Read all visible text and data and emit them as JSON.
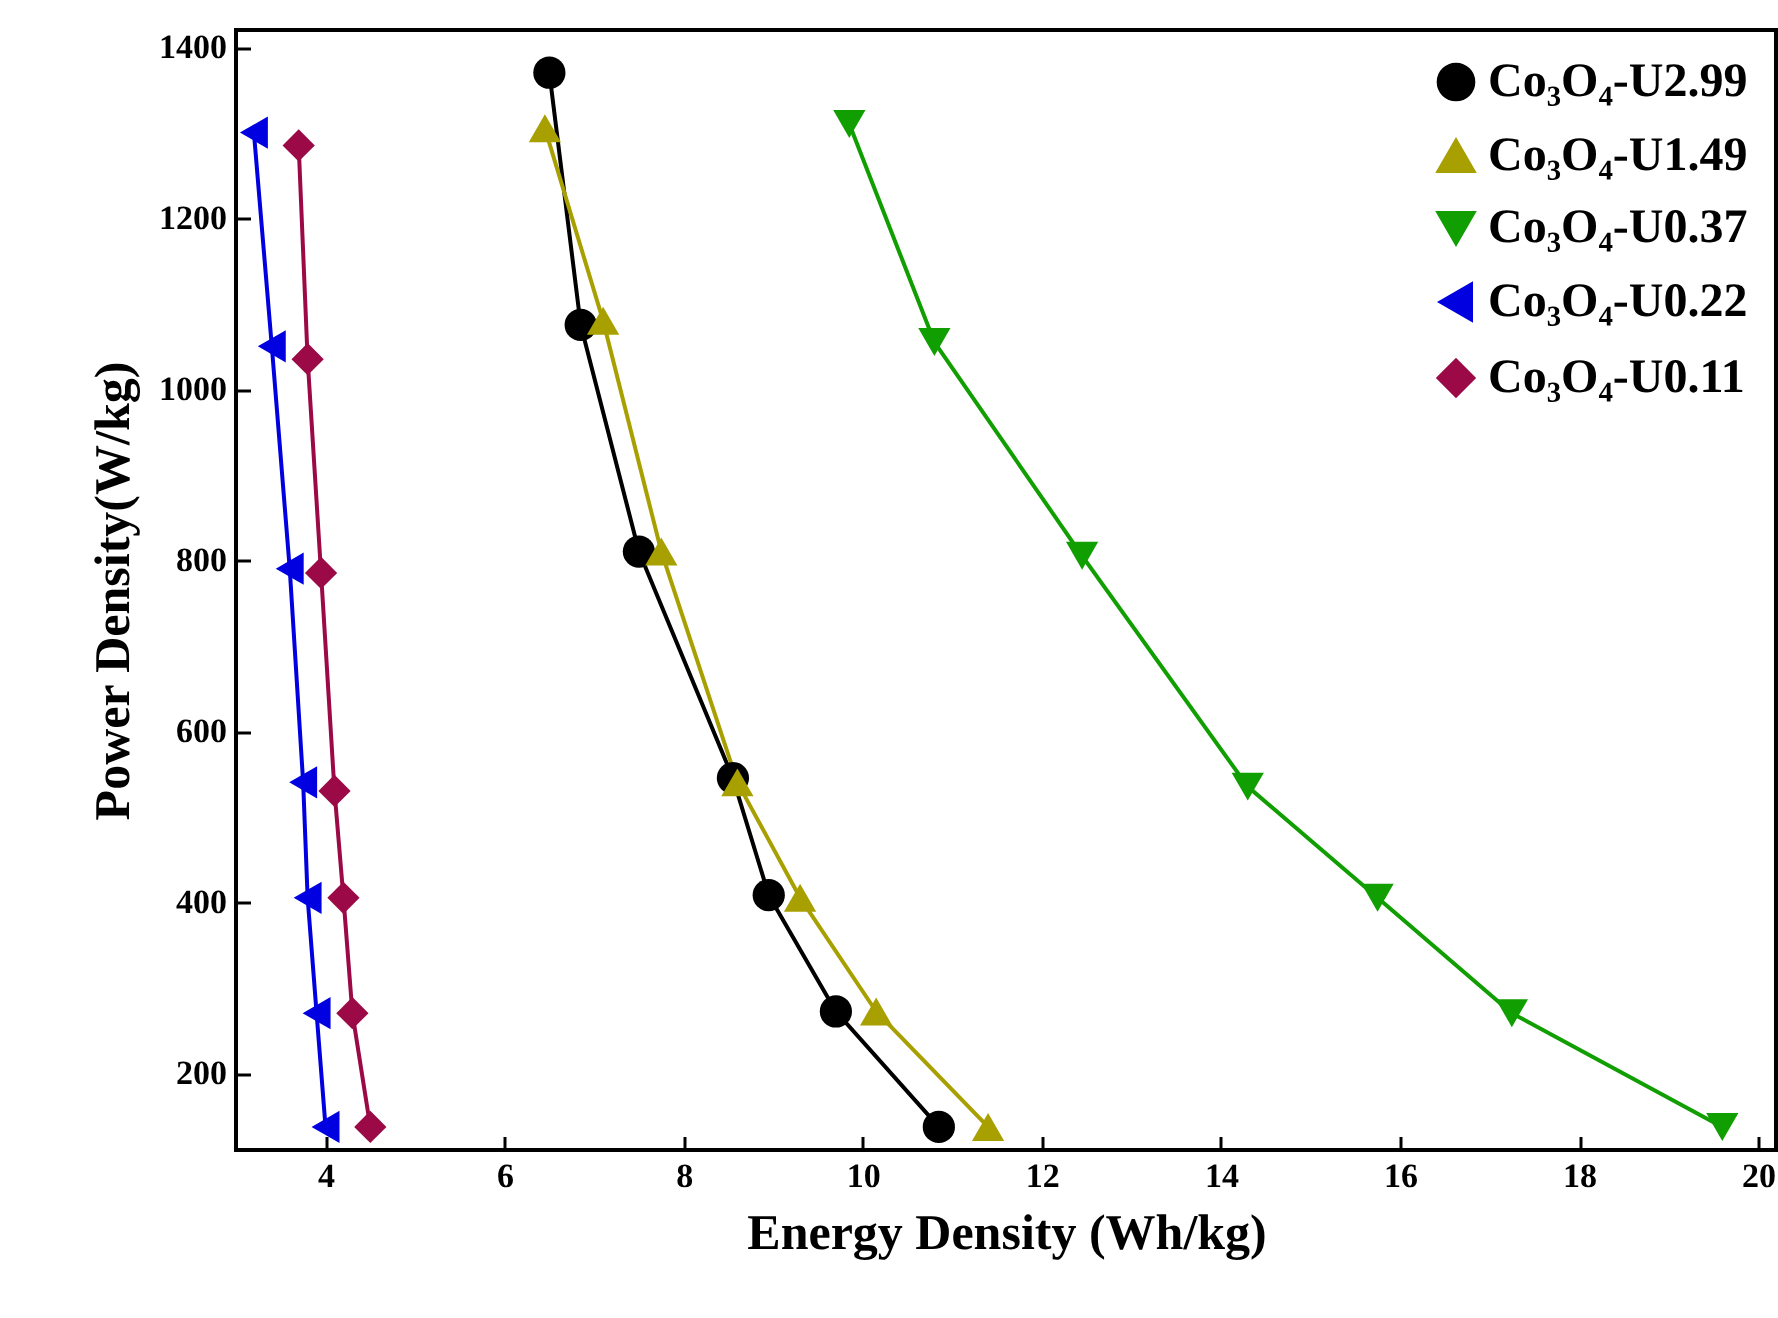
{
  "chart_data": {
    "type": "line",
    "xlabel": "Energy Density (Wh/kg)",
    "ylabel": "Power Density(W/kg)",
    "xlim": [
      3,
      20.2
    ],
    "ylim": [
      110,
      1420
    ],
    "xticks": [
      4,
      6,
      8,
      10,
      12,
      14,
      16,
      18,
      20
    ],
    "yticks": [
      200,
      400,
      600,
      800,
      1000,
      1200,
      1400
    ],
    "grid": false,
    "legend": "top right",
    "line_style": "solid",
    "series": [
      {
        "name": "Co₃O₄-U2.99",
        "color": "#000000",
        "marker": "circle",
        "x": [
          6.5,
          6.85,
          7.5,
          8.55,
          8.95,
          9.7,
          10.85
        ],
        "values": [
          1370,
          1075,
          810,
          545,
          408,
          272,
          137
        ]
      },
      {
        "name": "Co₃O₄-U1.49",
        "color": "#a8a000",
        "marker": "triangle",
        "x": [
          6.45,
          7.1,
          7.75,
          8.6,
          9.3,
          10.15,
          11.4
        ],
        "values": [
          1305,
          1080,
          810,
          540,
          405,
          272,
          137
        ]
      },
      {
        "name": "Co₃O₄-U0.37",
        "color": "#109e00",
        "marker": "triangle-down",
        "x": [
          9.85,
          10.8,
          12.45,
          14.3,
          15.75,
          17.25,
          19.6
        ],
        "values": [
          1310,
          1055,
          805,
          535,
          405,
          270,
          137
        ]
      },
      {
        "name": "Co₃O₄-U0.22",
        "color": "#0000e0",
        "marker": "triangle-left",
        "x": [
          3.2,
          3.4,
          3.6,
          3.75,
          3.8,
          3.9,
          4.0
        ],
        "values": [
          1300,
          1050,
          790,
          540,
          405,
          270,
          137
        ]
      },
      {
        "name": "Co₃O₄-U0.11",
        "color": "#9b0a46",
        "marker": "diamond",
        "x": [
          3.7,
          3.8,
          3.95,
          4.1,
          4.2,
          4.3,
          4.5
        ],
        "values": [
          1285,
          1035,
          785,
          530,
          405,
          270,
          137
        ]
      }
    ]
  }
}
